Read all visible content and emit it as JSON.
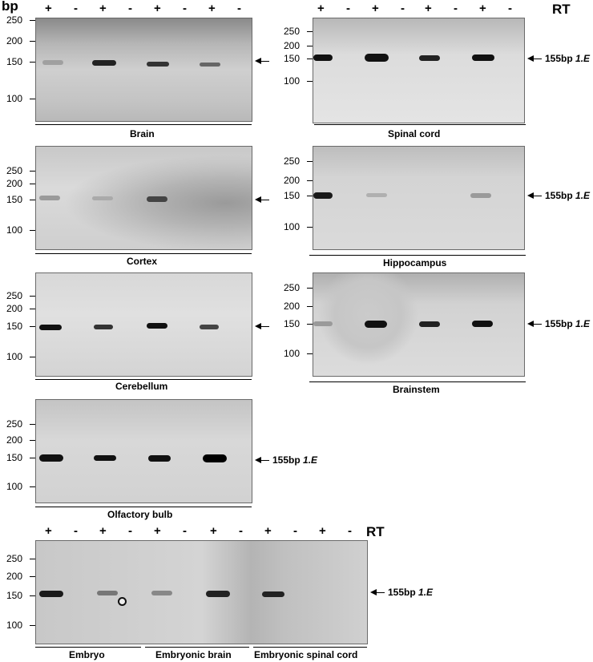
{
  "header": {
    "bp": "bp",
    "rt": "RT",
    "rt_bottom": "RT"
  },
  "rt_signs_top_left": [
    "+",
    "-",
    "+",
    "-",
    "+",
    "-",
    "+",
    "-"
  ],
  "rt_signs_top_right": [
    "+",
    "-",
    "+",
    "-",
    "+",
    "-",
    "+",
    "-"
  ],
  "rt_signs_bottom": [
    "+",
    "-",
    "+",
    "-",
    "+",
    "-",
    "+",
    "-",
    "+",
    "-",
    "+",
    "-"
  ],
  "marker_labels": {
    "m250": "250",
    "m200": "200",
    "m150": "150",
    "m100": "100"
  },
  "band_label": {
    "size": "155bp",
    "name": "1.E"
  },
  "panels": {
    "brain": "Brain",
    "spinal_cord": "Spinal cord",
    "cortex": "Cortex",
    "hippocampus": "Hippocampus",
    "cerebellum": "Cerebellum",
    "brainstem": "Brainstem",
    "olfactory_bulb": "Olfactory bulb",
    "embryo": "Embryo",
    "embryonic_brain": "Embryonic brain",
    "embryonic_spinal_cord": "Embryonic spinal cord"
  },
  "colors": {
    "gel_light": "#d9d9d9",
    "gel_dark": "#8f8f8f",
    "band_dark": "#111111"
  }
}
